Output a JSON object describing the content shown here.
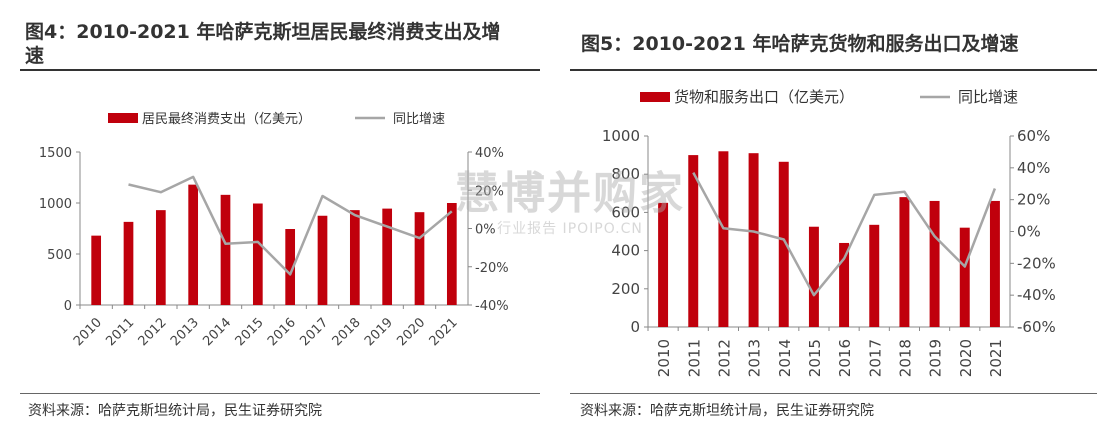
{
  "watermark": {
    "main": "慧博并购家",
    "sub": "行业报告 IPOIPO.CN"
  },
  "left": {
    "title_line1": "图4：2010-2021 年哈萨克斯坦居民最终消费支出及增",
    "title_line2": "速",
    "source": "资料来源：哈萨克斯坦统计局，民生证券研究院",
    "chart_data": {
      "type": "bar",
      "categories": [
        "2010",
        "2011",
        "2012",
        "2013",
        "2014",
        "2015",
        "2016",
        "2017",
        "2018",
        "2019",
        "2020",
        "2021"
      ],
      "series": [
        {
          "name": "居民最终消费支出（亿美元）",
          "type": "bar",
          "axis": "left",
          "color": "#c0000c",
          "values": [
            680,
            815,
            930,
            1180,
            1080,
            995,
            745,
            875,
            930,
            945,
            910,
            1000
          ]
        },
        {
          "name": "同比增速",
          "type": "line",
          "axis": "right",
          "color": "#a6a6a6",
          "values": [
            null,
            23,
            19,
            27,
            -8,
            -7,
            -24,
            17,
            7,
            1,
            -5,
            9
          ]
        }
      ],
      "ylim_left": [
        0,
        1500
      ],
      "yticks_left": [
        0,
        500,
        1000,
        1500
      ],
      "ylim_right": [
        -40,
        40
      ],
      "yticks_right": [
        "-40%",
        "-20%",
        "0%",
        "20%",
        "40%"
      ],
      "yticks_right_values": [
        -40,
        -20,
        0,
        20,
        40
      ],
      "legend_placement": "top"
    }
  },
  "right": {
    "title": "图5：2010-2021 年哈萨克货物和服务出口及增速",
    "source": "资料来源：哈萨克斯坦统计局，民生证券研究院",
    "chart_data": {
      "type": "bar",
      "categories": [
        "2010",
        "2011",
        "2012",
        "2013",
        "2014",
        "2015",
        "2016",
        "2017",
        "2018",
        "2019",
        "2020",
        "2021"
      ],
      "series": [
        {
          "name": "货物和服务出口（亿美元）",
          "type": "bar",
          "axis": "left",
          "color": "#c0000c",
          "values": [
            650,
            900,
            920,
            910,
            865,
            525,
            440,
            535,
            680,
            660,
            520,
            660
          ]
        },
        {
          "name": "同比增速",
          "type": "line",
          "axis": "right",
          "color": "#a6a6a6",
          "values": [
            null,
            37,
            2,
            0,
            -5,
            -40,
            -17,
            23,
            25,
            -3,
            -22,
            27
          ]
        }
      ],
      "ylim_left": [
        0,
        1000
      ],
      "yticks_left": [
        0,
        200,
        400,
        600,
        800,
        1000
      ],
      "ylim_right": [
        -60,
        60
      ],
      "yticks_right": [
        "-60%",
        "-40%",
        "-20%",
        "0%",
        "20%",
        "40%",
        "60%"
      ],
      "yticks_right_values": [
        -60,
        -40,
        -20,
        0,
        20,
        40,
        60
      ],
      "legend_placement": "top"
    }
  }
}
